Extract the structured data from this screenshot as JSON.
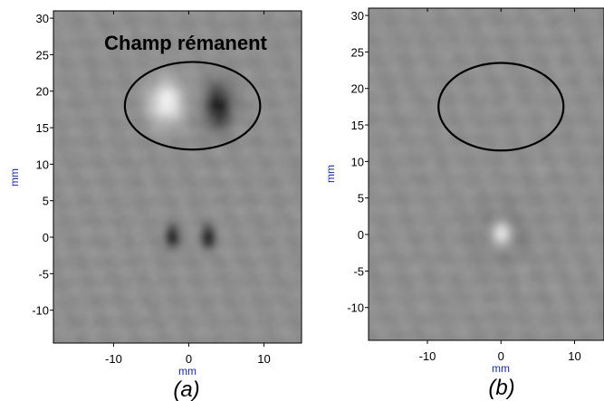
{
  "colors": {
    "background": "#ffffff",
    "axis": "#000000",
    "axis_label": "#1a2a9a",
    "image_bg": "#8c8c8c",
    "ellipse_stroke": "#000000"
  },
  "panels": [
    {
      "id": "a",
      "caption": "(a)",
      "xlabel": "mm",
      "ylabel": "mm",
      "annotation": "Champ rémanent",
      "x_range": [
        -18,
        15
      ],
      "y_range": [
        -14.5,
        31
      ],
      "x_ticks": [
        -10,
        0,
        10
      ],
      "y_ticks": [
        30,
        25,
        20,
        15,
        10,
        5,
        0,
        -5,
        -10
      ],
      "tick_labels_x": [
        "-10",
        "0",
        "10"
      ],
      "tick_labels_y": [
        "30",
        "25",
        "20",
        "15",
        "10",
        "5",
        "0",
        "-5",
        "-10"
      ],
      "ellipse": {
        "cx": 0.5,
        "cy": 18,
        "rx": 9,
        "ry": 6
      },
      "features": [
        {
          "x": -3,
          "y": 18.5,
          "sx": 2.3,
          "sy": 3.0,
          "amp": 0.9
        },
        {
          "x": 4,
          "y": 18.0,
          "sx": 1.8,
          "sy": 3.0,
          "amp": -0.95
        },
        {
          "x": -2.2,
          "y": 0,
          "sx": 1.0,
          "sy": 1.6,
          "amp": -0.85
        },
        {
          "x": 2.6,
          "y": 0,
          "sx": 1.0,
          "sy": 1.6,
          "amp": -0.85
        }
      ]
    },
    {
      "id": "b",
      "caption": "(b)",
      "xlabel": "mm",
      "ylabel": "mm",
      "annotation": "",
      "x_range": [
        -18,
        14
      ],
      "y_range": [
        -14.5,
        31
      ],
      "x_ticks": [
        -10,
        0,
        10
      ],
      "y_ticks": [
        30,
        25,
        20,
        15,
        10,
        5,
        0,
        -5,
        -10
      ],
      "tick_labels_x": [
        "-10",
        "0",
        "10"
      ],
      "tick_labels_y": [
        "30",
        "25",
        "20",
        "15",
        "10",
        "5",
        "0",
        "-5",
        "-10"
      ],
      "ellipse": {
        "cx": 0,
        "cy": 17.5,
        "rx": 8.5,
        "ry": 6
      },
      "features": [
        {
          "x": 0,
          "y": 0,
          "sx": 1.5,
          "sy": 1.8,
          "amp": 0.95
        },
        {
          "x": 0,
          "y": 0,
          "sx": 3.2,
          "sy": 3.4,
          "amp": -0.25
        }
      ]
    }
  ]
}
